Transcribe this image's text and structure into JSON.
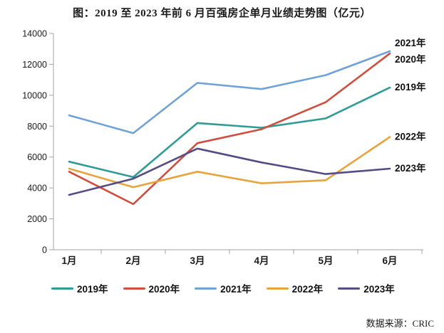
{
  "page": {
    "title": "图：2019 至 2023 年前 6 月百强房企单月业绩走势图（亿元）",
    "source_note": "数据来源：CRIC"
  },
  "chart_data": {
    "type": "line",
    "title": "图：2019 至 2023 年前 6 月百强房企单月业绩走势图（亿元）",
    "unit": "亿元",
    "categories": [
      "1月",
      "2月",
      "3月",
      "4月",
      "5月",
      "6月"
    ],
    "series": [
      {
        "name": "2019年",
        "color": "#2E9B94",
        "values": [
          5700,
          4700,
          8200,
          7900,
          8500,
          10500
        ]
      },
      {
        "name": "2020年",
        "color": "#CE4E3F",
        "values": [
          5050,
          2950,
          6900,
          7800,
          9550,
          12700
        ]
      },
      {
        "name": "2021年",
        "color": "#70A2D8",
        "values": [
          8700,
          7550,
          10800,
          10400,
          11300,
          12850
        ]
      },
      {
        "name": "2022年",
        "color": "#E7A33C",
        "values": [
          5250,
          4050,
          5050,
          4300,
          4500,
          7300
        ]
      },
      {
        "name": "2023年",
        "color": "#564B85",
        "values": [
          3550,
          4600,
          6550,
          5650,
          4900,
          5250
        ]
      }
    ],
    "ylim": [
      0,
      14000
    ],
    "ytick_step": 2000,
    "ytick_labels": [
      "0",
      "2000",
      "4000",
      "6000",
      "8000",
      "10000",
      "12000",
      "14000"
    ],
    "grid": false,
    "legend_position": "bottom",
    "end_labels": [
      "2019年",
      "2020年",
      "2021年",
      "2022年",
      "2023年"
    ],
    "axis_color": "#A6A6A6",
    "text_color": "#1a1a1a",
    "source_note": "数据来源：CRIC"
  }
}
